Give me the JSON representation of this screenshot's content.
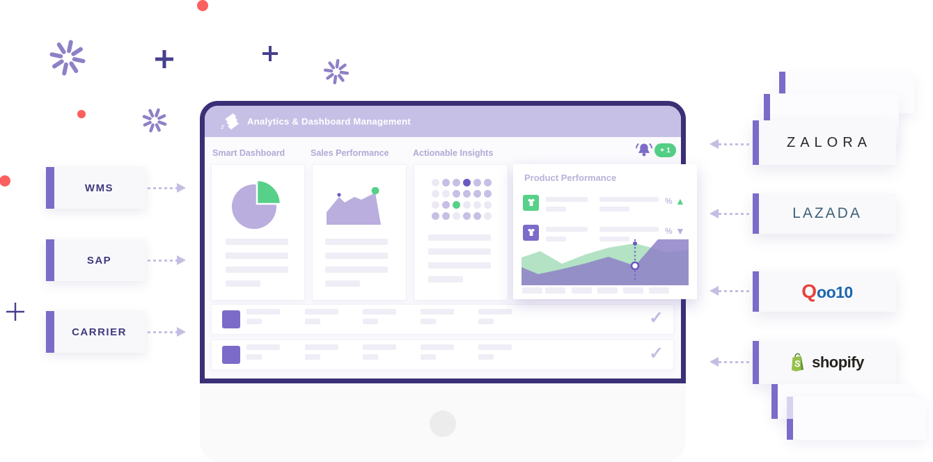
{
  "colors": {
    "purple": "#7c6bc9",
    "purpleDark": "#3a3076",
    "navyText": "#3f3a7d",
    "headerBg": "#c7c0e6",
    "tabText": "#b2aad4",
    "skeleton": "#efedf5",
    "cardBorder": "#f1eff7",
    "green": "#57d089",
    "mint": "#b3e3c4",
    "areaPurple": "#8e81c8",
    "lavender": "#b9aedd",
    "dotL": "#ece9f5",
    "dotM": "#c7bfe5",
    "dotD": "#6b59c1",
    "red": "#fc5f5f",
    "starburst": "#8f80c6",
    "plus": "#46408d",
    "arrow": "#c5bee2",
    "badgeGreen": "#52ce85",
    "zalora": "#28282e",
    "lazada": "#3f5f76",
    "qooRed": "#e8413c",
    "qooBlue": "#1b66ae",
    "shopifyGreen": "#95bf47",
    "shopifyDark": "#5e8e3e",
    "shopifyText": "#26211e",
    "screenBg": "#fbfafd",
    "chinBg": "#fafafa",
    "ghostStripeLight": "#d8d2ef"
  },
  "integrations": [
    {
      "label": "WMS"
    },
    {
      "label": "SAP"
    },
    {
      "label": "CARRIER"
    }
  ],
  "marketplaces": [
    {
      "name": "ZALORA"
    },
    {
      "name": "LAZADA"
    },
    {
      "name": "Qoo10",
      "name_parts": [
        "Q",
        "oo10"
      ]
    },
    {
      "name": "shopify"
    }
  ],
  "dashboard": {
    "header": {
      "title": "Analytics & Dashboard Management"
    },
    "tabs": [
      "Smart Dashboard",
      "Sales Performance",
      "Actionable Insights"
    ],
    "notifications": {
      "badge": "+ 1"
    },
    "product_card": {
      "title": "Product Performance",
      "metrics": [
        {
          "symbol": "%",
          "trend": "▲",
          "direction": "up"
        },
        {
          "symbol": "%",
          "trend": "▼",
          "direction": "down"
        }
      ]
    },
    "insight_grid": [
      "l",
      "m",
      "m",
      "d",
      "m",
      "m",
      "l",
      "l",
      "m",
      "m",
      "m",
      "m",
      "l",
      "m",
      "g",
      "l",
      "l",
      "l",
      "m",
      "m",
      "l",
      "m",
      "m",
      "l"
    ],
    "row_check": "✓"
  }
}
